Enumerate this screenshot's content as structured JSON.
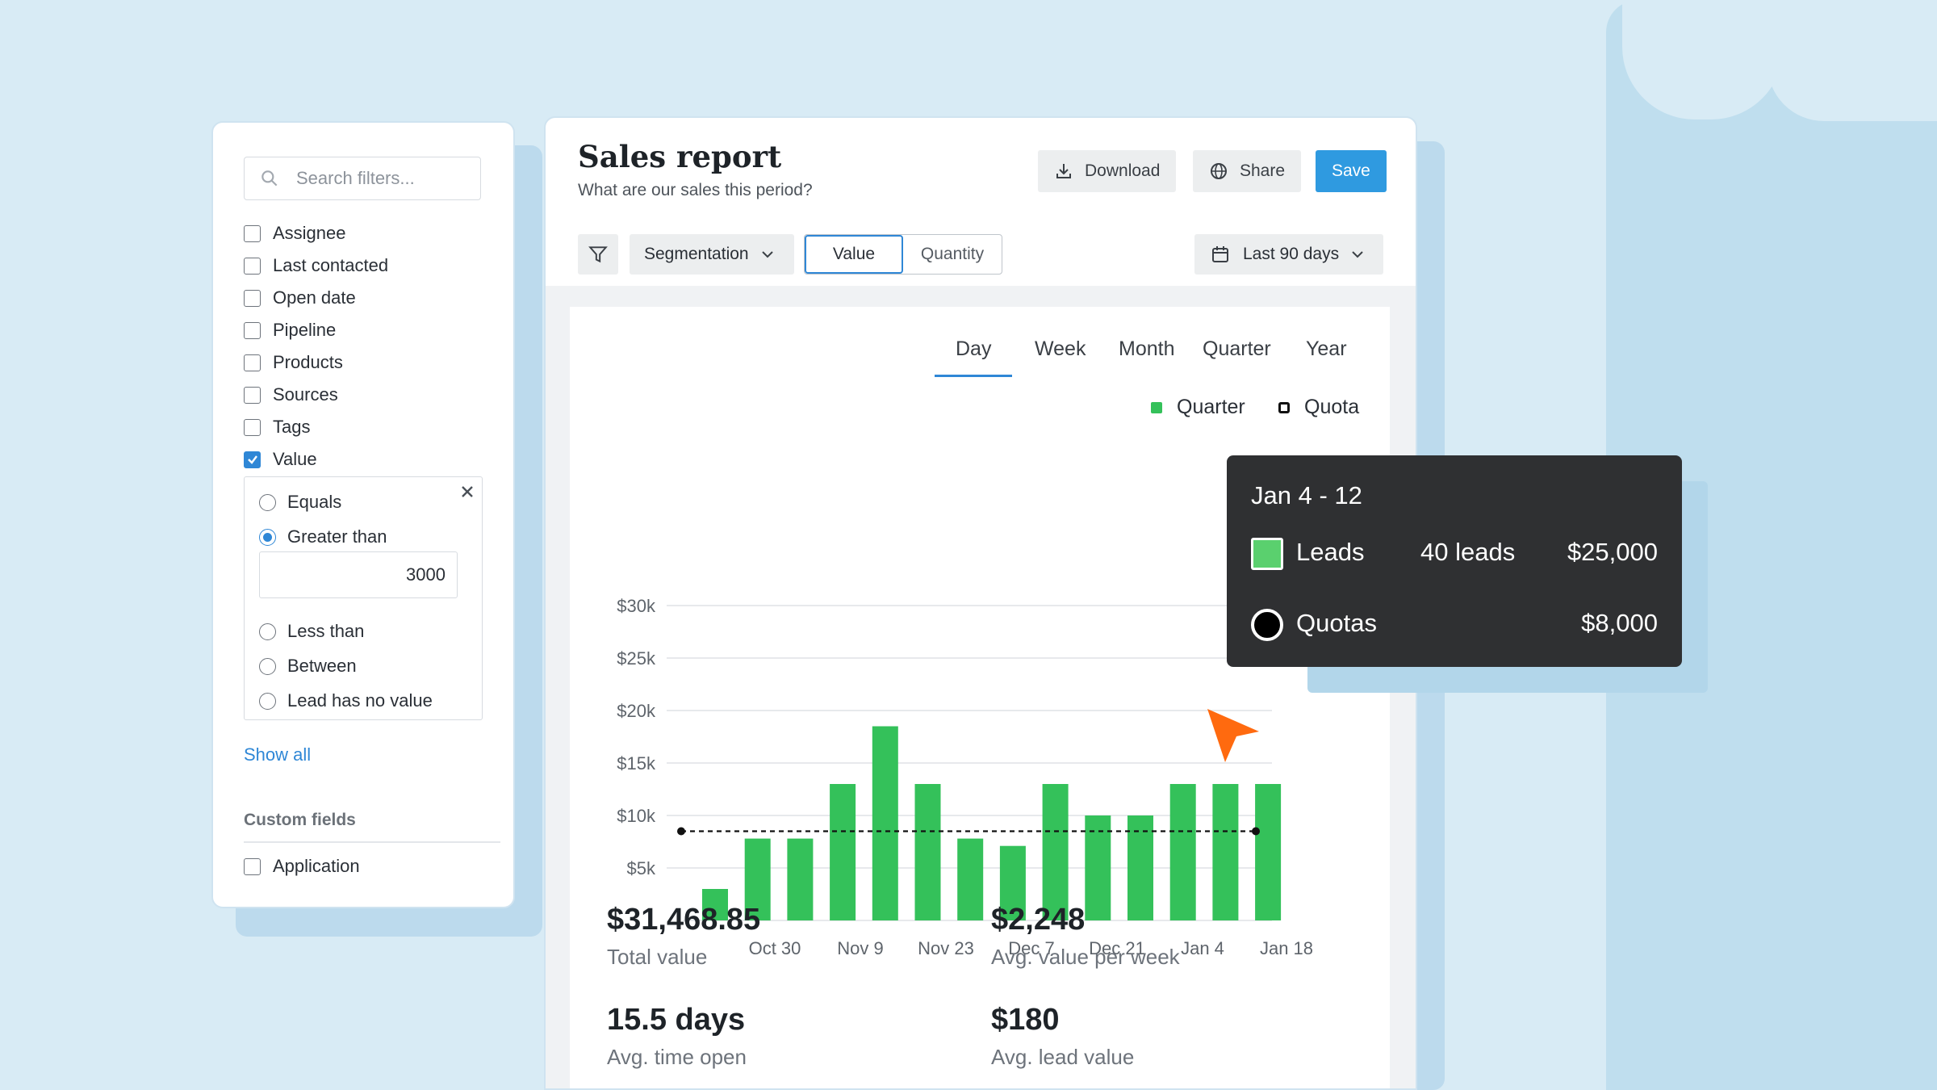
{
  "filters": {
    "search_placeholder": "Search filters...",
    "items": [
      {
        "label": "Assignee",
        "checked": false
      },
      {
        "label": "Last contacted",
        "checked": false
      },
      {
        "label": "Open date",
        "checked": false
      },
      {
        "label": "Pipeline",
        "checked": false
      },
      {
        "label": "Products",
        "checked": false
      },
      {
        "label": "Sources",
        "checked": false
      },
      {
        "label": "Tags",
        "checked": false
      },
      {
        "label": "Value",
        "checked": true
      }
    ],
    "value_options": {
      "equals": "Equals",
      "greater_than": "Greater than",
      "greater_than_value": "3000",
      "less_than": "Less than",
      "between": "Between",
      "no_value": "Lead has no value",
      "selected": "Greater than"
    },
    "show_all": "Show all",
    "custom_fields_title": "Custom fields",
    "custom_items": [
      {
        "label": "Application",
        "checked": false
      }
    ]
  },
  "report": {
    "title": "Sales report",
    "subtitle": "What are our sales this period?",
    "download_label": "Download",
    "share_label": "Share",
    "save_label": "Save",
    "segmentation_label": "Segmentation",
    "toggle_value": "Value",
    "toggle_quantity": "Quantity",
    "date_range": "Last 90 days",
    "tabs": [
      "Day",
      "Week",
      "Month",
      "Quarter",
      "Year"
    ],
    "active_tab": "Day",
    "legend": {
      "quarter": "Quarter",
      "quota": "Quota"
    }
  },
  "chart_data": {
    "type": "bar",
    "y_ticks": [
      "$30k",
      "$25k",
      "$20k",
      "$15k",
      "$10k",
      "$5k"
    ],
    "x_tick_labels": [
      "Oct 30",
      "Nov 9",
      "Nov 23",
      "Dec 7",
      "Dec 21",
      "Jan 4",
      "Jan 18"
    ],
    "ylim": [
      0,
      30000
    ],
    "series": [
      {
        "name": "Quarter",
        "color": "#34c15a",
        "values": [
          3000,
          7800,
          7800,
          13000,
          18500,
          13000,
          7800,
          7100,
          13000,
          10000,
          10000,
          13000,
          13000,
          13000
        ]
      },
      {
        "name": "Quota",
        "color": "#111111",
        "values": [
          8500,
          8500
        ]
      }
    ],
    "grid": true
  },
  "stats": [
    {
      "value": "$31,468.85",
      "label": "Total value"
    },
    {
      "value": "$2,248",
      "label": "Avg. value per week"
    },
    {
      "value": "15.5 days",
      "label": "Avg. time open"
    },
    {
      "value": "$180",
      "label": "Avg. lead value"
    }
  ],
  "tooltip": {
    "title": "Jan 4 - 12",
    "leads_label": "Leads",
    "leads_count": "40 leads",
    "leads_value": "$25,000",
    "quotas_label": "Quotas",
    "quotas_value": "$8,000"
  }
}
